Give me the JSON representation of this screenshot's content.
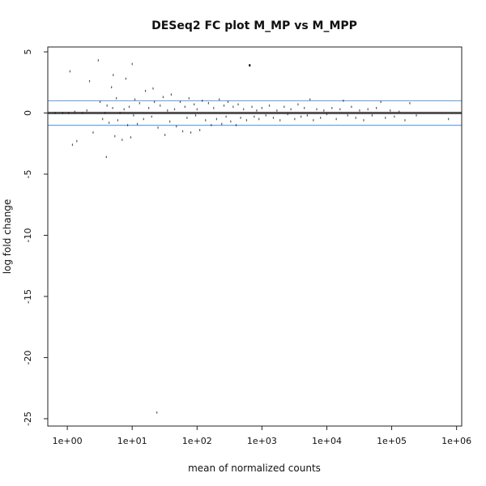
{
  "chart_data": {
    "type": "scatter",
    "title": "DESeq2 FC plot M_MP vs M_MPP",
    "xlabel": "mean of normalized counts",
    "ylabel": "log fold change",
    "x_scale": "log10",
    "xlim": [
      0.5,
      1200000
    ],
    "ylim": [
      -25.6,
      5.4
    ],
    "x_ticks": [
      {
        "value": 1,
        "label": "1e+00"
      },
      {
        "value": 10,
        "label": "1e+01"
      },
      {
        "value": 100,
        "label": "1e+02"
      },
      {
        "value": 1000,
        "label": "1e+03"
      },
      {
        "value": 10000,
        "label": "1e+04"
      },
      {
        "value": 100000,
        "label": "1e+05"
      },
      {
        "value": 1000000,
        "label": "1e+06"
      }
    ],
    "y_ticks": [
      {
        "value": 5,
        "label": "5"
      },
      {
        "value": 0,
        "label": "0"
      },
      {
        "value": -5,
        "label": "-5"
      },
      {
        "value": -10,
        "label": "-10"
      },
      {
        "value": -15,
        "label": "-15"
      },
      {
        "value": -20,
        "label": "-20"
      },
      {
        "value": -25,
        "label": "-25"
      }
    ],
    "reference_lines": [
      {
        "y": 0,
        "color": "#555555"
      },
      {
        "y": 1,
        "color": "#6ba6e3"
      },
      {
        "y": -1,
        "color": "#6ba6e3"
      }
    ],
    "grid": false,
    "legend": "none",
    "point_color": "#222222",
    "highlighted_point_color": "#000000",
    "points": [
      {
        "x": 1.1,
        "y": 3.4
      },
      {
        "x": 1.2,
        "y": -2.6
      },
      {
        "x": 1.3,
        "y": 0.1
      },
      {
        "x": 0.65,
        "y": 0.0
      },
      {
        "x": 0.85,
        "y": 0.0
      },
      {
        "x": 1.05,
        "y": 0.0
      },
      {
        "x": 1.4,
        "y": -2.3
      },
      {
        "x": 1.7,
        "y": 0.0
      },
      {
        "x": 2.0,
        "y": 0.2
      },
      {
        "x": 2.2,
        "y": 2.6
      },
      {
        "x": 2.5,
        "y": -1.6
      },
      {
        "x": 3.0,
        "y": 4.3
      },
      {
        "x": 3.2,
        "y": 0.9
      },
      {
        "x": 3.5,
        "y": -0.5
      },
      {
        "x": 3.8,
        "y": 0.0
      },
      {
        "x": 4.0,
        "y": -3.6
      },
      {
        "x": 4.1,
        "y": 0.6
      },
      {
        "x": 4.4,
        "y": -0.8
      },
      {
        "x": 4.8,
        "y": 2.1
      },
      {
        "x": 5.0,
        "y": 0.4
      },
      {
        "x": 5.1,
        "y": 3.1
      },
      {
        "x": 5.4,
        "y": -1.9
      },
      {
        "x": 5.7,
        "y": 1.2
      },
      {
        "x": 6.0,
        "y": -0.6
      },
      {
        "x": 6.5,
        "y": 0.0
      },
      {
        "x": 7.0,
        "y": -2.2
      },
      {
        "x": 7.5,
        "y": 0.3
      },
      {
        "x": 8.0,
        "y": 2.8
      },
      {
        "x": 8.5,
        "y": -1.0
      },
      {
        "x": 9.0,
        "y": 0.5
      },
      {
        "x": 9.5,
        "y": -2.0
      },
      {
        "x": 10.0,
        "y": 4.0
      },
      {
        "x": 10.5,
        "y": -0.2
      },
      {
        "x": 11.0,
        "y": 1.1
      },
      {
        "x": 12.0,
        "y": -0.9
      },
      {
        "x": 13.0,
        "y": 0.8
      },
      {
        "x": 15.0,
        "y": -0.5
      },
      {
        "x": 16.0,
        "y": 1.8
      },
      {
        "x": 18.0,
        "y": 0.4
      },
      {
        "x": 20.0,
        "y": -0.3
      },
      {
        "x": 21.0,
        "y": 2.0
      },
      {
        "x": 22.0,
        "y": 0.9
      },
      {
        "x": 24.0,
        "y": -24.5
      },
      {
        "x": 25.0,
        "y": -1.2
      },
      {
        "x": 27.0,
        "y": 0.6
      },
      {
        "x": 30.0,
        "y": 1.3
      },
      {
        "x": 32.0,
        "y": -1.8
      },
      {
        "x": 35.0,
        "y": 0.2
      },
      {
        "x": 38.0,
        "y": -0.7
      },
      {
        "x": 40.0,
        "y": 1.5
      },
      {
        "x": 45.0,
        "y": 0.3
      },
      {
        "x": 48.0,
        "y": -1.1
      },
      {
        "x": 55.0,
        "y": 0.9
      },
      {
        "x": 60.0,
        "y": -1.5
      },
      {
        "x": 65.0,
        "y": 0.5
      },
      {
        "x": 70.0,
        "y": -0.4
      },
      {
        "x": 75.0,
        "y": 1.2
      },
      {
        "x": 80.0,
        "y": -1.6
      },
      {
        "x": 90.0,
        "y": 0.7
      },
      {
        "x": 95.0,
        "y": -0.2
      },
      {
        "x": 100.0,
        "y": 0.3
      },
      {
        "x": 110.0,
        "y": -1.4
      },
      {
        "x": 120.0,
        "y": 1.0
      },
      {
        "x": 135.0,
        "y": -0.6
      },
      {
        "x": 150.0,
        "y": 0.8
      },
      {
        "x": 165.0,
        "y": -1.0
      },
      {
        "x": 180.0,
        "y": 0.4
      },
      {
        "x": 200.0,
        "y": -0.5
      },
      {
        "x": 220.0,
        "y": 1.1
      },
      {
        "x": 240.0,
        "y": -0.9
      },
      {
        "x": 260.0,
        "y": 0.6
      },
      {
        "x": 280.0,
        "y": -0.3
      },
      {
        "x": 300.0,
        "y": 0.9
      },
      {
        "x": 330.0,
        "y": -0.7
      },
      {
        "x": 360.0,
        "y": 0.5
      },
      {
        "x": 400.0,
        "y": -1.0
      },
      {
        "x": 430.0,
        "y": 0.7
      },
      {
        "x": 470.0,
        "y": -0.4
      },
      {
        "x": 520.0,
        "y": 0.3
      },
      {
        "x": 580.0,
        "y": -0.6
      },
      {
        "x": 640.0,
        "y": 3.9
      },
      {
        "x": 700.0,
        "y": 0.5
      },
      {
        "x": 760.0,
        "y": -0.3
      },
      {
        "x": 830.0,
        "y": 0.2
      },
      {
        "x": 900.0,
        "y": -0.5
      },
      {
        "x": 1000.0,
        "y": 0.4
      },
      {
        "x": 1150.0,
        "y": -0.2
      },
      {
        "x": 1300.0,
        "y": 0.6
      },
      {
        "x": 1500.0,
        "y": -0.4
      },
      {
        "x": 1700.0,
        "y": 0.2
      },
      {
        "x": 1900.0,
        "y": -0.6
      },
      {
        "x": 2200.0,
        "y": 0.5
      },
      {
        "x": 2500.0,
        "y": -0.1
      },
      {
        "x": 2800.0,
        "y": 0.3
      },
      {
        "x": 3200.0,
        "y": -0.5
      },
      {
        "x": 3600.0,
        "y": 0.7
      },
      {
        "x": 4000.0,
        "y": -0.3
      },
      {
        "x": 4500.0,
        "y": 0.4
      },
      {
        "x": 5000.0,
        "y": -0.2
      },
      {
        "x": 5500.0,
        "y": 1.1
      },
      {
        "x": 6200.0,
        "y": -0.6
      },
      {
        "x": 7000.0,
        "y": 0.3
      },
      {
        "x": 8000.0,
        "y": -0.4
      },
      {
        "x": 9000.0,
        "y": 0.2
      },
      {
        "x": 10000.0,
        "y": -0.1
      },
      {
        "x": 12000.0,
        "y": 0.4
      },
      {
        "x": 14000.0,
        "y": -0.5
      },
      {
        "x": 16000.0,
        "y": 0.3
      },
      {
        "x": 18000.0,
        "y": 1.0
      },
      {
        "x": 21000.0,
        "y": -0.2
      },
      {
        "x": 24000.0,
        "y": 0.5
      },
      {
        "x": 28000.0,
        "y": -0.4
      },
      {
        "x": 32000.0,
        "y": 0.2
      },
      {
        "x": 37000.0,
        "y": -0.6
      },
      {
        "x": 43000.0,
        "y": 0.3
      },
      {
        "x": 50000.0,
        "y": -0.2
      },
      {
        "x": 58000.0,
        "y": 0.4
      },
      {
        "x": 68000.0,
        "y": 0.9
      },
      {
        "x": 80000.0,
        "y": -0.4
      },
      {
        "x": 95000.0,
        "y": 0.2
      },
      {
        "x": 110000.0,
        "y": -0.3
      },
      {
        "x": 130000.0,
        "y": 0.1
      },
      {
        "x": 160000.0,
        "y": -0.6
      },
      {
        "x": 190000.0,
        "y": 0.8
      },
      {
        "x": 240000.0,
        "y": -0.2
      },
      {
        "x": 750000.0,
        "y": -0.5
      }
    ]
  }
}
